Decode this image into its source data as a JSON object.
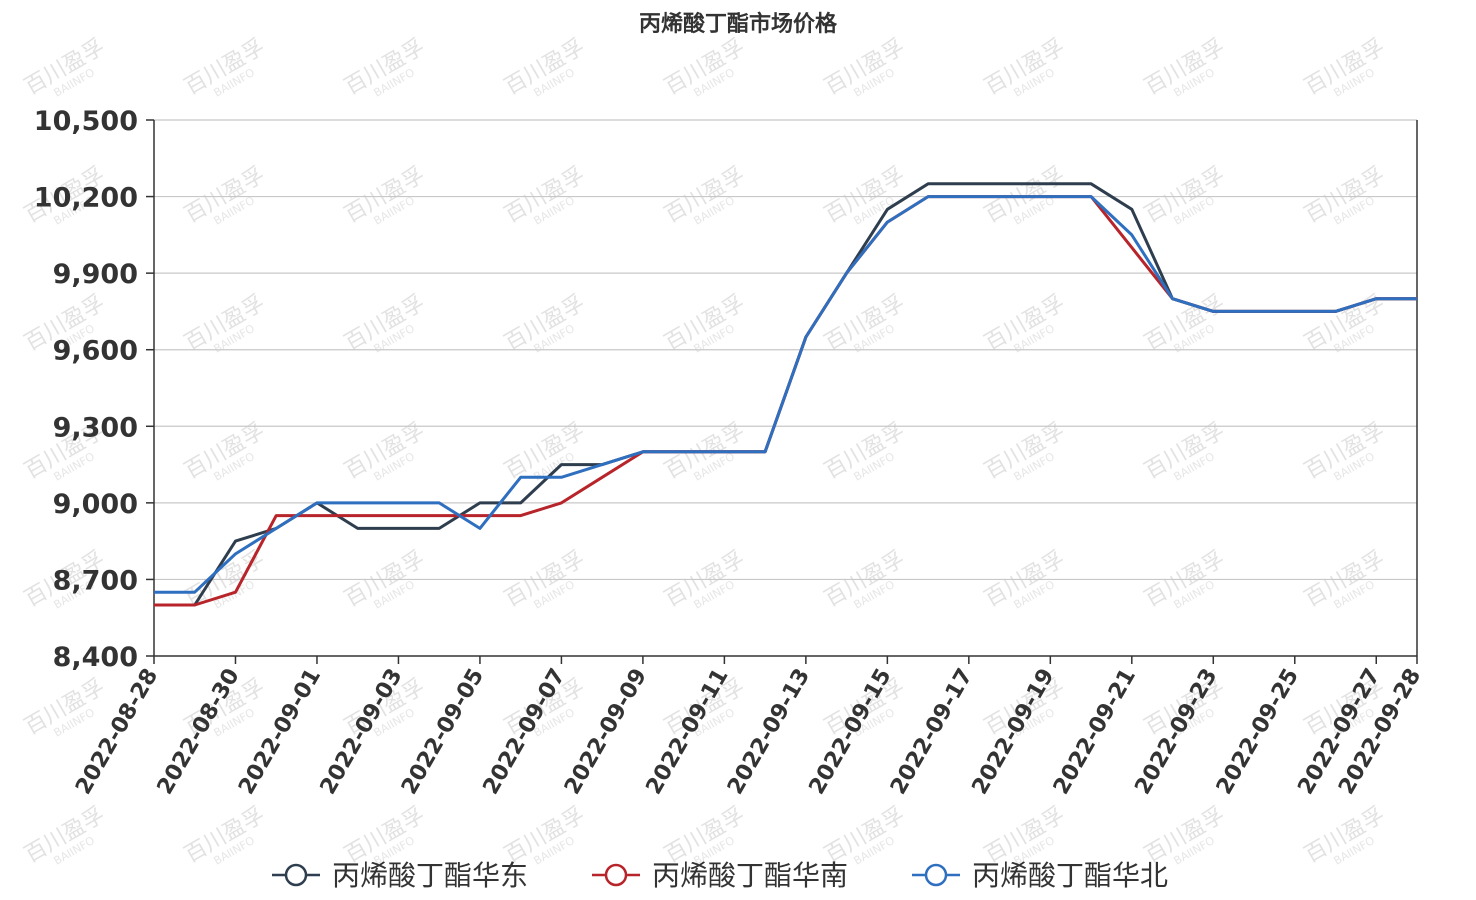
{
  "chart_data": {
    "type": "line",
    "title": "丙烯酸丁酯市场价格",
    "watermark": "百川盈孚 BAIINFO",
    "ylim": [
      8400,
      10500
    ],
    "yticks": [
      8400,
      8700,
      9000,
      9300,
      9600,
      9900,
      10200,
      10500
    ],
    "ytick_labels": [
      "8,400",
      "8,700",
      "9,000",
      "9,300",
      "9,600",
      "9,900",
      "10,200",
      "10,500"
    ],
    "xlim": [
      "2022-08-28",
      "2022-09-28"
    ],
    "xtick_labels": [
      "2022-08-28",
      "2022-08-30",
      "2022-09-01",
      "2022-09-03",
      "2022-09-05",
      "2022-09-07",
      "2022-09-09",
      "2022-09-11",
      "2022-09-13",
      "2022-09-15",
      "2022-09-17",
      "2022-09-19",
      "2022-09-21",
      "2022-09-23",
      "2022-09-25",
      "2022-09-27",
      "2022-09-28"
    ],
    "grid": true,
    "legend_position": "bottom-center",
    "series": [
      {
        "name": "丙烯酸丁酯华东",
        "color": "#2f3e4e",
        "points": [
          [
            "2022-08-28",
            8600
          ],
          [
            "2022-08-29",
            8600
          ],
          [
            "2022-08-30",
            8850
          ],
          [
            "2022-08-31",
            8900
          ],
          [
            "2022-09-01",
            9000
          ],
          [
            "2022-09-02",
            8900
          ],
          [
            "2022-09-03",
            8900
          ],
          [
            "2022-09-04",
            8900
          ],
          [
            "2022-09-05",
            9000
          ],
          [
            "2022-09-06",
            9000
          ],
          [
            "2022-09-07",
            9150
          ],
          [
            "2022-09-08",
            9150
          ],
          [
            "2022-09-09",
            9200
          ],
          [
            "2022-09-10",
            9200
          ],
          [
            "2022-09-11",
            9200
          ],
          [
            "2022-09-12",
            9200
          ],
          [
            "2022-09-13",
            9650
          ],
          [
            "2022-09-14",
            9900
          ],
          [
            "2022-09-15",
            10150
          ],
          [
            "2022-09-16",
            10250
          ],
          [
            "2022-09-17",
            10250
          ],
          [
            "2022-09-18",
            10250
          ],
          [
            "2022-09-19",
            10250
          ],
          [
            "2022-09-20",
            10250
          ],
          [
            "2022-09-21",
            10150
          ],
          [
            "2022-09-22",
            9800
          ],
          [
            "2022-09-23",
            9750
          ],
          [
            "2022-09-24",
            9750
          ],
          [
            "2022-09-25",
            9750
          ],
          [
            "2022-09-26",
            9750
          ],
          [
            "2022-09-27",
            9800
          ],
          [
            "2022-09-28",
            9800
          ]
        ]
      },
      {
        "name": "丙烯酸丁酯华南",
        "color": "#b7242a",
        "points": [
          [
            "2022-08-28",
            8600
          ],
          [
            "2022-08-29",
            8600
          ],
          [
            "2022-08-30",
            8650
          ],
          [
            "2022-08-31",
            8950
          ],
          [
            "2022-09-01",
            8950
          ],
          [
            "2022-09-02",
            8950
          ],
          [
            "2022-09-03",
            8950
          ],
          [
            "2022-09-04",
            8950
          ],
          [
            "2022-09-05",
            8950
          ],
          [
            "2022-09-06",
            8950
          ],
          [
            "2022-09-07",
            9000
          ],
          [
            "2022-09-08",
            9100
          ],
          [
            "2022-09-09",
            9200
          ],
          [
            "2022-09-10",
            9200
          ],
          [
            "2022-09-11",
            9200
          ],
          [
            "2022-09-12",
            9200
          ],
          [
            "2022-09-13",
            9650
          ],
          [
            "2022-09-14",
            9900
          ],
          [
            "2022-09-15",
            10100
          ],
          [
            "2022-09-16",
            10200
          ],
          [
            "2022-09-17",
            10200
          ],
          [
            "2022-09-18",
            10200
          ],
          [
            "2022-09-19",
            10200
          ],
          [
            "2022-09-20",
            10200
          ],
          [
            "2022-09-21",
            10000
          ],
          [
            "2022-09-22",
            9800
          ],
          [
            "2022-09-23",
            9750
          ],
          [
            "2022-09-24",
            9750
          ],
          [
            "2022-09-25",
            9750
          ],
          [
            "2022-09-26",
            9750
          ],
          [
            "2022-09-27",
            9800
          ],
          [
            "2022-09-28",
            9800
          ]
        ]
      },
      {
        "name": "丙烯酸丁酯华北",
        "color": "#2f6fbf",
        "points": [
          [
            "2022-08-28",
            8650
          ],
          [
            "2022-08-29",
            8650
          ],
          [
            "2022-08-30",
            8800
          ],
          [
            "2022-08-31",
            8900
          ],
          [
            "2022-09-01",
            9000
          ],
          [
            "2022-09-02",
            9000
          ],
          [
            "2022-09-03",
            9000
          ],
          [
            "2022-09-04",
            9000
          ],
          [
            "2022-09-05",
            8900
          ],
          [
            "2022-09-06",
            9100
          ],
          [
            "2022-09-07",
            9100
          ],
          [
            "2022-09-08",
            9150
          ],
          [
            "2022-09-09",
            9200
          ],
          [
            "2022-09-10",
            9200
          ],
          [
            "2022-09-11",
            9200
          ],
          [
            "2022-09-12",
            9200
          ],
          [
            "2022-09-13",
            9650
          ],
          [
            "2022-09-14",
            9900
          ],
          [
            "2022-09-15",
            10100
          ],
          [
            "2022-09-16",
            10200
          ],
          [
            "2022-09-17",
            10200
          ],
          [
            "2022-09-18",
            10200
          ],
          [
            "2022-09-19",
            10200
          ],
          [
            "2022-09-20",
            10200
          ],
          [
            "2022-09-21",
            10050
          ],
          [
            "2022-09-22",
            9800
          ],
          [
            "2022-09-23",
            9750
          ],
          [
            "2022-09-24",
            9750
          ],
          [
            "2022-09-25",
            9750
          ],
          [
            "2022-09-26",
            9750
          ],
          [
            "2022-09-27",
            9800
          ],
          [
            "2022-09-28",
            9800
          ]
        ]
      }
    ]
  }
}
